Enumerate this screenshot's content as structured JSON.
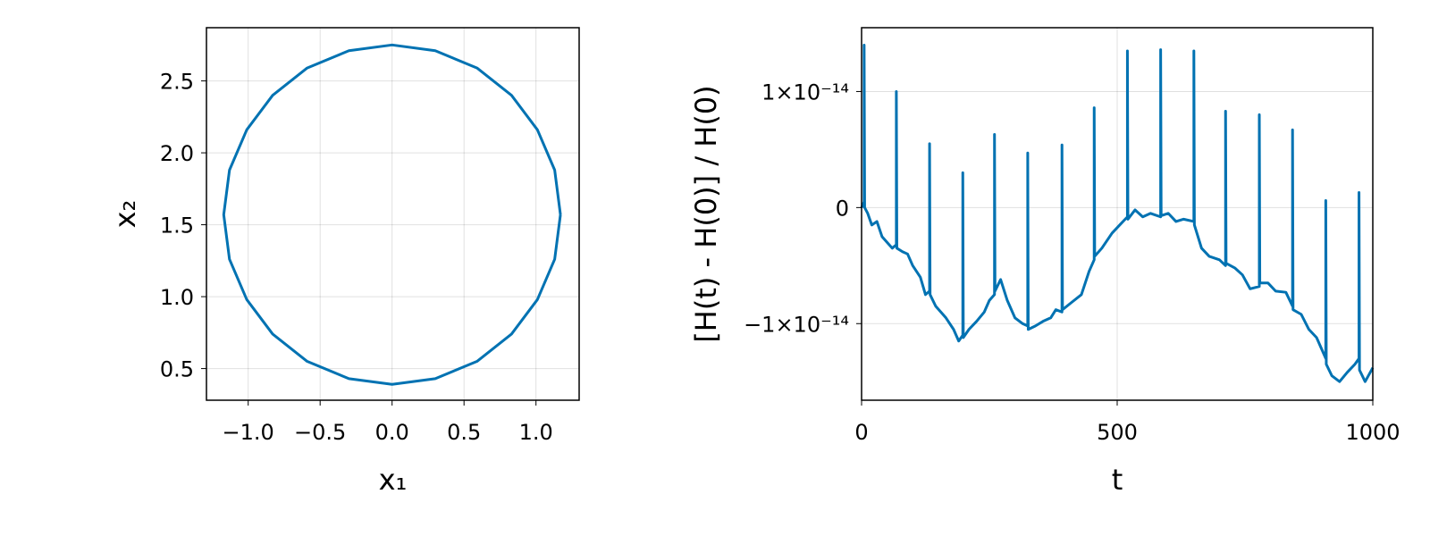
{
  "chart_data": [
    {
      "type": "line",
      "x_label": "x₁",
      "y_label": "x₂",
      "color": "#0072b2",
      "grid": true,
      "x": [
        1.17,
        1.13,
        1.01,
        0.83,
        0.59,
        0.3,
        0,
        -0.3,
        -0.59,
        -0.83,
        -1.01,
        -1.13,
        -1.17,
        -1.13,
        -1.01,
        -0.83,
        -0.59,
        -0.3,
        0,
        0.3,
        0.59,
        0.83,
        1.01,
        1.13,
        1.17
      ],
      "values": [
        1.57,
        1.88,
        2.16,
        2.4,
        2.59,
        2.71,
        2.75,
        2.71,
        2.59,
        2.4,
        2.16,
        1.88,
        1.57,
        1.26,
        0.98,
        0.74,
        0.55,
        0.43,
        0.39,
        0.43,
        0.55,
        0.74,
        0.98,
        1.26,
        1.57
      ],
      "xlim": [
        -1.29,
        1.3
      ],
      "ylim": [
        0.28,
        2.87
      ],
      "xticks": [
        {
          "value": -1,
          "label": "−1.0"
        },
        {
          "value": -0.5,
          "label": "−0.5"
        },
        {
          "value": 0,
          "label": "0.0"
        },
        0.5,
        {
          "value": 1,
          "label": "1.0"
        }
      ],
      "yticks": [
        0.5,
        {
          "value": 1,
          "label": "1.0"
        },
        1.5,
        {
          "value": 2,
          "label": "2.0"
        },
        2.5
      ]
    },
    {
      "type": "line",
      "x_label": "t",
      "y_label": "[H(t) - H(0)] / H(0)",
      "color": "#0072b2",
      "grid": true,
      "x": [
        0,
        5,
        5,
        6,
        12,
        20,
        30,
        40,
        50,
        60,
        68,
        68,
        69,
        80,
        90,
        100,
        115,
        125,
        133,
        133,
        134,
        145,
        155,
        165,
        180,
        190,
        198,
        198,
        199,
        210,
        225,
        240,
        250,
        260,
        260,
        261,
        272,
        285,
        300,
        315,
        325,
        325,
        326,
        340,
        355,
        370,
        380,
        392,
        392,
        393,
        410,
        430,
        445,
        455,
        455,
        456,
        470,
        490,
        505,
        520,
        520,
        521,
        535,
        550,
        565,
        585,
        585,
        586,
        600,
        615,
        630,
        650,
        650,
        651,
        665,
        680,
        700,
        712,
        712,
        713,
        730,
        745,
        760,
        778,
        778,
        779,
        795,
        810,
        830,
        843,
        843,
        844,
        860,
        875,
        890,
        908,
        908,
        909,
        920,
        935,
        950,
        965,
        973,
        973,
        974,
        985,
        995,
        1000
      ],
      "values": [
        0,
        5e-16,
        1.4e-14,
        0,
        -5e-16,
        -1.5e-15,
        -1.2e-15,
        -2.5e-15,
        -3e-15,
        -3.5e-15,
        -3.2e-15,
        1e-14,
        -3.5e-15,
        -3.8e-15,
        -4e-15,
        -5e-15,
        -6e-15,
        -7.5e-15,
        -7.2e-15,
        5.5e-15,
        -7.5e-15,
        -8.5e-15,
        -9e-15,
        -9.5e-15,
        -1.05e-14,
        -1.15e-14,
        -1.1e-14,
        3e-15,
        -1.12e-14,
        -1.05e-14,
        -9.8e-15,
        -9e-15,
        -8e-15,
        -7.5e-15,
        6.3e-15,
        -7.2e-15,
        -6.2e-15,
        -8e-15,
        -9.5e-15,
        -1e-14,
        -1.02e-14,
        4.7e-15,
        -1.05e-14,
        -1.02e-14,
        -9.8e-15,
        -9.5e-15,
        -8.8e-15,
        -9e-15,
        5.4e-15,
        -8.8e-15,
        -8.2e-15,
        -7.5e-15,
        -5.5e-15,
        -4.5e-15,
        8.6e-15,
        -4.2e-15,
        -3.5e-15,
        -2.2e-15,
        -1.5e-15,
        -8e-16,
        1.35e-14,
        -1e-15,
        -2e-16,
        -8e-16,
        -5e-16,
        -8e-16,
        1.36e-14,
        -7e-16,
        -5e-16,
        -1.2e-15,
        -1e-15,
        -1.2e-15,
        1.35e-14,
        -1.5e-15,
        -3.5e-15,
        -4.2e-15,
        -4.5e-15,
        -5e-15,
        8.3e-15,
        -4.8e-15,
        -5.2e-15,
        -5.8e-15,
        -7e-15,
        -6.8e-15,
        8e-15,
        -6.5e-15,
        -6.5e-15,
        -7.2e-15,
        -7.3e-15,
        -8.5e-15,
        6.7e-15,
        -8.8e-15,
        -9.2e-15,
        -1.05e-14,
        -1.12e-14,
        -1.3e-14,
        6e-16,
        -1.35e-14,
        -1.45e-14,
        -1.5e-14,
        -1.42e-14,
        -1.35e-14,
        -1.3e-14,
        1.3e-15,
        -1.4e-14,
        -1.5e-14,
        -1.42e-14,
        -1.38e-14
      ],
      "xlim": [
        0,
        1000
      ],
      "ylim": [
        -1.66e-14,
        1.55e-14
      ],
      "xticks": [
        0,
        500,
        1000
      ],
      "yticks": [
        {
          "value": -1e-14,
          "label": "−1×10⁻¹⁴"
        },
        0,
        {
          "value": 1e-14,
          "label": "1×10⁻¹⁴"
        }
      ]
    }
  ]
}
